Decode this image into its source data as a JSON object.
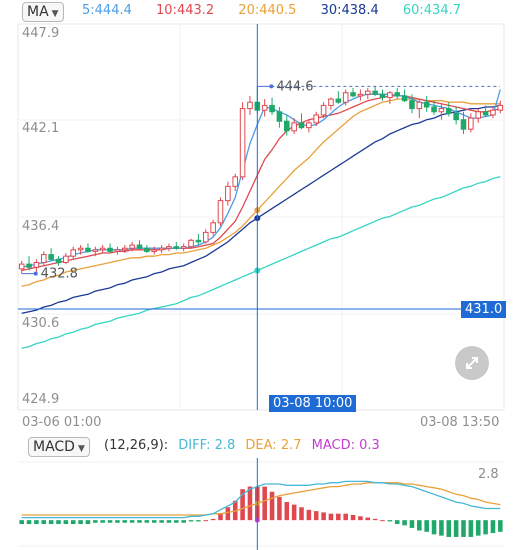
{
  "ma_indicator": {
    "selector_label": "MA",
    "ma5": "5:444.4",
    "ma10": "10:443.2",
    "ma20": "20:440.5",
    "ma30": "30:438.4",
    "ma60": "60:434.7",
    "colors": {
      "ma5": "#4a9de8",
      "ma10": "#e0484f",
      "ma20": "#e8a13a",
      "ma30": "#1a3a96",
      "ma60": "#35d5c5"
    }
  },
  "macd_indicator": {
    "selector_label": "MACD",
    "params": "(12,26,9):",
    "diff": "DIFF: 2.8",
    "dea": "DEA: 2.7",
    "macd": "MACD: 0.3",
    "value_label": "2.8",
    "colors": {
      "diff": "#46b8d6",
      "dea": "#e8a13a",
      "macd": "#c23ecf"
    }
  },
  "crosshair": {
    "price_tag": "431.0",
    "time_tag": "03-08 10:00"
  },
  "chart_data": {
    "type": "candlestick",
    "y_ticks": [
      "447.9",
      "442.1",
      "436.4",
      "430.6",
      "424.9"
    ],
    "ylim": [
      424.9,
      447.9
    ],
    "x_labels": [
      "03-06 01:00",
      "03-08 13:50"
    ],
    "high_marker": "444.6",
    "low_marker": "432.8",
    "up_color": "#e0484f",
    "down_color": "#1fa86a",
    "candles": [
      [
        433.1,
        433.6,
        432.8,
        433.4
      ],
      [
        433.4,
        433.9,
        433.0,
        433.2
      ],
      [
        433.2,
        433.7,
        432.9,
        433.5
      ],
      [
        433.5,
        434.2,
        433.3,
        434.0
      ],
      [
        434.0,
        434.4,
        433.6,
        433.7
      ],
      [
        433.7,
        433.9,
        433.3,
        433.5
      ],
      [
        433.5,
        434.1,
        433.4,
        433.9
      ],
      [
        433.9,
        434.5,
        433.7,
        434.3
      ],
      [
        434.3,
        434.6,
        434.0,
        434.4
      ],
      [
        434.4,
        434.7,
        434.1,
        434.2
      ],
      [
        434.2,
        434.5,
        433.9,
        434.3
      ],
      [
        434.3,
        434.6,
        434.1,
        434.4
      ],
      [
        434.4,
        434.7,
        434.1,
        434.2
      ],
      [
        434.2,
        434.5,
        434.0,
        434.3
      ],
      [
        434.3,
        434.6,
        434.1,
        434.4
      ],
      [
        434.4,
        434.8,
        434.2,
        434.6
      ],
      [
        434.6,
        434.9,
        434.3,
        434.4
      ],
      [
        434.4,
        434.6,
        434.1,
        434.2
      ],
      [
        434.2,
        434.5,
        434.0,
        434.3
      ],
      [
        434.3,
        434.6,
        434.1,
        434.4
      ],
      [
        434.4,
        434.7,
        434.2,
        434.5
      ],
      [
        434.5,
        434.8,
        434.3,
        434.4
      ],
      [
        434.4,
        434.7,
        434.2,
        434.5
      ],
      [
        434.5,
        435.0,
        434.4,
        434.9
      ],
      [
        434.9,
        435.3,
        434.6,
        434.8
      ],
      [
        434.8,
        435.6,
        434.7,
        435.4
      ],
      [
        435.4,
        436.2,
        435.2,
        436.0
      ],
      [
        436.0,
        437.6,
        435.8,
        437.4
      ],
      [
        437.4,
        438.6,
        437.1,
        438.3
      ],
      [
        438.3,
        439.1,
        438.0,
        438.9
      ],
      [
        438.9,
        443.6,
        438.7,
        443.2
      ],
      [
        443.2,
        444.0,
        442.8,
        443.6
      ],
      [
        443.6,
        444.6,
        442.9,
        443.1
      ],
      [
        443.1,
        443.8,
        442.7,
        443.4
      ],
      [
        443.4,
        443.9,
        442.8,
        443.0
      ],
      [
        443.0,
        443.3,
        442.0,
        442.4
      ],
      [
        442.4,
        442.8,
        441.5,
        441.8
      ],
      [
        441.8,
        442.6,
        441.6,
        442.3
      ],
      [
        442.3,
        442.9,
        441.9,
        442.0
      ],
      [
        442.0,
        442.5,
        441.7,
        442.3
      ],
      [
        442.3,
        443.0,
        442.1,
        442.8
      ],
      [
        442.8,
        443.6,
        442.6,
        443.4
      ],
      [
        443.4,
        443.9,
        443.1,
        443.8
      ],
      [
        443.8,
        444.3,
        443.5,
        443.6
      ],
      [
        443.6,
        444.4,
        443.4,
        444.2
      ],
      [
        444.2,
        444.5,
        443.9,
        444.0
      ],
      [
        444.0,
        444.4,
        443.7,
        444.1
      ],
      [
        444.1,
        444.5,
        443.8,
        444.3
      ],
      [
        444.3,
        444.6,
        444.0,
        444.1
      ],
      [
        444.1,
        444.4,
        443.7,
        443.9
      ],
      [
        443.9,
        444.3,
        443.5,
        444.2
      ],
      [
        444.2,
        444.5,
        443.8,
        444.0
      ],
      [
        444.0,
        444.4,
        443.6,
        443.7
      ],
      [
        443.7,
        444.1,
        442.9,
        443.2
      ],
      [
        443.2,
        443.8,
        442.6,
        443.6
      ],
      [
        443.6,
        444.0,
        443.0,
        443.3
      ],
      [
        443.3,
        443.7,
        442.8,
        443.0
      ],
      [
        443.0,
        443.5,
        442.5,
        443.2
      ],
      [
        443.2,
        443.6,
        442.7,
        442.9
      ],
      [
        442.9,
        443.3,
        442.2,
        442.5
      ],
      [
        442.5,
        443.0,
        441.6,
        441.9
      ],
      [
        441.9,
        442.9,
        441.7,
        442.6
      ],
      [
        442.6,
        443.2,
        442.3,
        443.0
      ],
      [
        443.0,
        443.4,
        442.7,
        442.8
      ],
      [
        442.8,
        443.3,
        442.6,
        443.1
      ],
      [
        443.1,
        443.7,
        442.9,
        443.4
      ]
    ],
    "ma_series": {
      "ma5": [
        433.2,
        433.3,
        433.4,
        433.5,
        433.6,
        433.7,
        433.8,
        434.0,
        434.1,
        434.2,
        434.3,
        434.3,
        434.3,
        434.3,
        434.3,
        434.4,
        434.4,
        434.4,
        434.4,
        434.4,
        434.4,
        434.4,
        434.4,
        434.5,
        434.6,
        434.8,
        435.1,
        435.7,
        436.6,
        437.6,
        439.3,
        441.0,
        442.2,
        443.3,
        443.2,
        443.0,
        442.8,
        442.5,
        442.2,
        442.1,
        442.2,
        442.5,
        442.9,
        443.3,
        443.6,
        443.8,
        444.0,
        444.1,
        444.1,
        444.1,
        444.1,
        444.0,
        444.0,
        443.8,
        443.6,
        443.5,
        443.4,
        443.3,
        443.2,
        443.0,
        442.8,
        442.6,
        442.6,
        442.7,
        442.8,
        444.4
      ],
      "ma10": [
        433.0,
        433.1,
        433.2,
        433.3,
        433.4,
        433.5,
        433.6,
        433.7,
        433.8,
        433.9,
        434.0,
        434.1,
        434.1,
        434.2,
        434.2,
        434.3,
        434.3,
        434.3,
        434.3,
        434.3,
        434.4,
        434.4,
        434.4,
        434.4,
        434.5,
        434.6,
        434.7,
        435.1,
        435.6,
        436.1,
        437.0,
        438.0,
        439.0,
        440.0,
        440.6,
        441.3,
        441.8,
        442.1,
        442.3,
        442.5,
        442.6,
        442.7,
        442.8,
        442.9,
        443.1,
        443.3,
        443.5,
        443.7,
        443.8,
        443.9,
        444.0,
        444.0,
        444.0,
        443.9,
        443.8,
        443.7,
        443.6,
        443.5,
        443.4,
        443.3,
        443.2,
        443.1,
        443.0,
        443.0,
        443.1,
        443.2
      ],
      "ma20": [
        432.0,
        432.1,
        432.3,
        432.4,
        432.6,
        432.7,
        432.9,
        433.0,
        433.1,
        433.2,
        433.3,
        433.4,
        433.5,
        433.6,
        433.7,
        433.8,
        433.8,
        433.9,
        433.9,
        434.0,
        434.0,
        434.1,
        434.1,
        434.2,
        434.3,
        434.4,
        434.6,
        434.8,
        435.1,
        435.4,
        435.8,
        436.3,
        436.8,
        437.3,
        437.8,
        438.3,
        438.8,
        439.3,
        439.7,
        440.1,
        440.6,
        441.1,
        441.5,
        441.9,
        442.3,
        442.7,
        443.0,
        443.2,
        443.4,
        443.6,
        443.7,
        443.8,
        443.8,
        443.8,
        443.8,
        443.7,
        443.7,
        443.7,
        443.6,
        443.6,
        443.6,
        443.5,
        443.5,
        443.5,
        443.5,
        443.5
      ],
      "ma30": [
        430.3,
        430.4,
        430.5,
        430.7,
        430.8,
        431.0,
        431.1,
        431.3,
        431.4,
        431.5,
        431.7,
        431.8,
        431.9,
        432.1,
        432.2,
        432.4,
        432.5,
        432.6,
        432.8,
        432.9,
        433.1,
        433.2,
        433.3,
        433.5,
        433.7,
        433.9,
        434.2,
        434.5,
        434.8,
        435.2,
        435.6,
        436.0,
        436.3,
        436.6,
        436.9,
        437.2,
        437.5,
        437.8,
        438.1,
        438.4,
        438.7,
        439.0,
        439.3,
        439.6,
        439.9,
        440.2,
        440.5,
        440.8,
        441.1,
        441.3,
        441.6,
        441.8,
        442.0,
        442.2,
        442.3,
        442.5,
        442.6,
        442.8,
        442.9,
        443.0,
        443.1,
        443.2,
        443.2,
        443.3,
        443.3,
        443.4
      ],
      "ma60": [
        428.1,
        428.2,
        428.4,
        428.5,
        428.7,
        428.8,
        429.0,
        429.1,
        429.3,
        429.4,
        429.6,
        429.7,
        429.8,
        430.0,
        430.1,
        430.2,
        430.3,
        430.5,
        430.6,
        430.7,
        430.8,
        430.9,
        431.1,
        431.3,
        431.4,
        431.6,
        431.8,
        432.0,
        432.2,
        432.4,
        432.6,
        432.8,
        433.0,
        433.2,
        433.4,
        433.6,
        433.8,
        434.0,
        434.2,
        434.4,
        434.6,
        434.8,
        435.0,
        435.1,
        435.3,
        435.5,
        435.7,
        435.9,
        436.1,
        436.3,
        436.4,
        436.6,
        436.8,
        437.0,
        437.1,
        437.3,
        437.5,
        437.6,
        437.8,
        438.0,
        438.2,
        438.3,
        438.5,
        438.6,
        438.8,
        438.9
      ]
    },
    "macd_series": {
      "diff": [
        0.2,
        0.2,
        0.2,
        0.2,
        0.2,
        0.2,
        0.2,
        0.2,
        0.2,
        0.2,
        0.2,
        0.2,
        0.2,
        0.2,
        0.2,
        0.2,
        0.2,
        0.2,
        0.2,
        0.2,
        0.2,
        0.2,
        0.2,
        0.3,
        0.3,
        0.4,
        0.5,
        0.8,
        1.1,
        1.4,
        2.0,
        2.4,
        2.6,
        2.8,
        2.8,
        2.8,
        2.7,
        2.7,
        2.7,
        2.7,
        2.8,
        2.8,
        2.9,
        2.9,
        3.0,
        3.0,
        3.0,
        3.0,
        2.9,
        2.9,
        2.8,
        2.8,
        2.7,
        2.6,
        2.4,
        2.2,
        2.0,
        1.8,
        1.6,
        1.4,
        1.3,
        1.1,
        1.0,
        0.9,
        0.9,
        0.9
      ],
      "dea": [
        0.4,
        0.4,
        0.4,
        0.4,
        0.4,
        0.4,
        0.4,
        0.4,
        0.4,
        0.4,
        0.4,
        0.4,
        0.4,
        0.4,
        0.4,
        0.4,
        0.4,
        0.4,
        0.4,
        0.4,
        0.4,
        0.4,
        0.4,
        0.4,
        0.4,
        0.4,
        0.5,
        0.5,
        0.6,
        0.7,
        0.9,
        1.1,
        1.3,
        1.5,
        1.7,
        1.9,
        2.0,
        2.1,
        2.2,
        2.3,
        2.4,
        2.5,
        2.6,
        2.6,
        2.7,
        2.8,
        2.8,
        2.9,
        2.9,
        2.9,
        2.9,
        2.9,
        2.8,
        2.8,
        2.7,
        2.6,
        2.5,
        2.4,
        2.2,
        2.0,
        1.9,
        1.7,
        1.6,
        1.4,
        1.3,
        1.2
      ],
      "hist": [
        -0.3,
        -0.3,
        -0.3,
        -0.3,
        -0.3,
        -0.3,
        -0.3,
        -0.3,
        -0.3,
        -0.3,
        -0.2,
        -0.2,
        -0.2,
        -0.2,
        -0.2,
        -0.2,
        -0.2,
        -0.2,
        -0.2,
        -0.2,
        -0.2,
        -0.2,
        -0.2,
        -0.1,
        -0.1,
        0.0,
        0.1,
        0.5,
        1.0,
        1.5,
        2.4,
        2.6,
        2.6,
        2.6,
        2.2,
        1.8,
        1.4,
        1.2,
        1.0,
        0.8,
        0.7,
        0.6,
        0.5,
        0.5,
        0.5,
        0.4,
        0.3,
        0.2,
        0.1,
        0.0,
        -0.1,
        -0.3,
        -0.4,
        -0.6,
        -0.8,
        -0.9,
        -1.1,
        -1.2,
        -1.3,
        -1.3,
        -1.3,
        -1.3,
        -1.2,
        -1.1,
        -1.0,
        -0.9
      ],
      "ylim": [
        -2.0,
        4.5
      ]
    },
    "crosshair_index": 32
  }
}
